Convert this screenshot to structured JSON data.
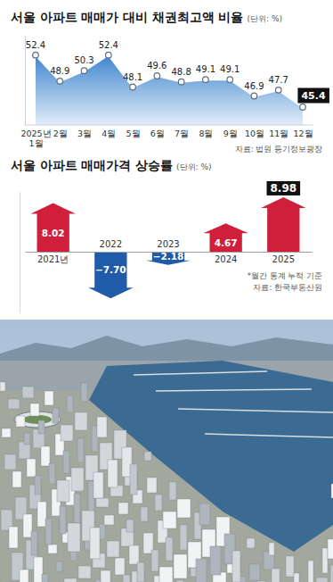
{
  "chart_data": [
    {
      "type": "area",
      "title": "서울 아파트 매매가 대비 채권최고액 비율",
      "subtitle": "(단위: %)",
      "categories": [
        "2025년\n1월",
        "2월",
        "3월",
        "4월",
        "5월",
        "6월",
        "7월",
        "8월",
        "9월",
        "10월",
        "11월",
        "12월"
      ],
      "values": [
        52.4,
        48.9,
        50.3,
        52.4,
        48.1,
        49.6,
        48.8,
        49.1,
        49.1,
        46.9,
        47.7,
        45.4
      ],
      "color": "#3f86cf",
      "marker": "circle",
      "ylim": [
        43,
        55
      ],
      "tick_labels": "x",
      "data_labels": true,
      "source": "자료: 법원 등기정보광장"
    },
    {
      "type": "bar",
      "title": "서울 아파트 매매가격 상승률",
      "subtitle": "(단위: %)",
      "categories": [
        "2021년",
        "2022",
        "2023",
        "2024",
        "2025"
      ],
      "values": [
        8.02,
        -7.7,
        -2.18,
        4.67,
        8.98
      ],
      "value_labels": [
        "8.02",
        "−7.70",
        "−2.18",
        "4.67",
        "8.98"
      ],
      "colors": [
        "#cf1f3b",
        "#1f5ba8",
        "#1f5ba8",
        "#cf1f3b",
        "#cf1f3b"
      ],
      "ylim": [
        -10,
        10
      ],
      "tick_labels": "x",
      "data_labels": true,
      "note": "*월간 통계 누적 기준",
      "source": "자료: 한국부동산원"
    }
  ]
}
